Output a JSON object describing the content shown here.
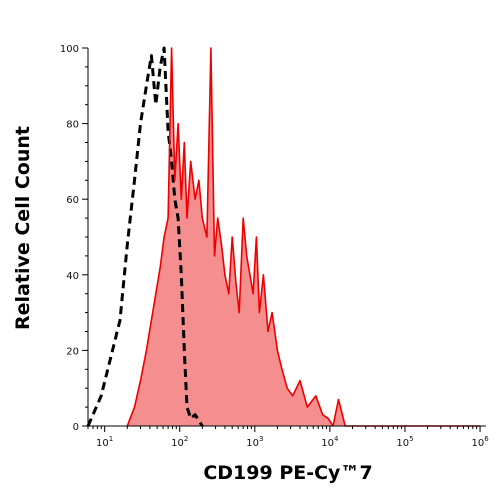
{
  "chart_data": {
    "type": "area",
    "title": "",
    "xlabel": "CD199 PE-Cy™7",
    "ylabel": "Relative Cell Count",
    "x_scale": "log",
    "xlim": [
      6,
      1200000
    ],
    "ylim": [
      0,
      100
    ],
    "grid": false,
    "legend": "none",
    "x_ticks": [
      {
        "value": 10,
        "base": "10",
        "exp": "1"
      },
      {
        "value": 100,
        "base": "10",
        "exp": "2"
      },
      {
        "value": 1000,
        "base": "10",
        "exp": "3"
      },
      {
        "value": 10000,
        "base": "10",
        "exp": "4"
      },
      {
        "value": 100000,
        "base": "10",
        "exp": "5"
      },
      {
        "value": 1000000,
        "base": "10",
        "exp": "6"
      }
    ],
    "y_ticks": [
      {
        "value": 0,
        "label": "0"
      },
      {
        "value": 20,
        "label": "20"
      },
      {
        "value": 40,
        "label": "40"
      },
      {
        "value": 60,
        "label": "60"
      },
      {
        "value": 80,
        "label": "80"
      },
      {
        "value": 100,
        "label": "100"
      }
    ],
    "series": [
      {
        "style": "dashed",
        "color": "#000000",
        "fill": "none",
        "x": [
          6,
          9,
          12,
          16,
          20,
          25,
          30,
          36,
          42,
          48,
          55,
          62,
          70,
          78,
          86,
          95,
          105,
          115,
          125,
          140,
          160,
          200
        ],
        "y": [
          0,
          8,
          18,
          28,
          48,
          65,
          80,
          90,
          98,
          85,
          95,
          100,
          78,
          70,
          60,
          55,
          40,
          20,
          5,
          2,
          3,
          0
        ]
      },
      {
        "style": "solid",
        "color": "#ee0000",
        "fill": "#f58e8e",
        "x": [
          20,
          25,
          30,
          36,
          42,
          48,
          55,
          62,
          70,
          78,
          86,
          95,
          105,
          115,
          125,
          140,
          160,
          180,
          200,
          230,
          260,
          290,
          320,
          360,
          400,
          450,
          500,
          560,
          620,
          700,
          780,
          860,
          950,
          1050,
          1150,
          1300,
          1500,
          1700,
          2000,
          2300,
          2700,
          3200,
          4000,
          5000,
          6500,
          8000,
          9500,
          11000,
          13000,
          16000,
          30000,
          100000,
          300000,
          1000000
        ],
        "y": [
          0,
          5,
          12,
          20,
          28,
          35,
          42,
          50,
          55,
          100,
          65,
          80,
          60,
          75,
          55,
          70,
          60,
          65,
          55,
          50,
          100,
          45,
          55,
          48,
          40,
          35,
          50,
          38,
          30,
          55,
          45,
          40,
          35,
          50,
          30,
          40,
          25,
          30,
          20,
          15,
          10,
          8,
          12,
          5,
          8,
          3,
          2,
          0,
          7,
          0,
          0,
          0,
          0,
          0
        ]
      }
    ]
  }
}
